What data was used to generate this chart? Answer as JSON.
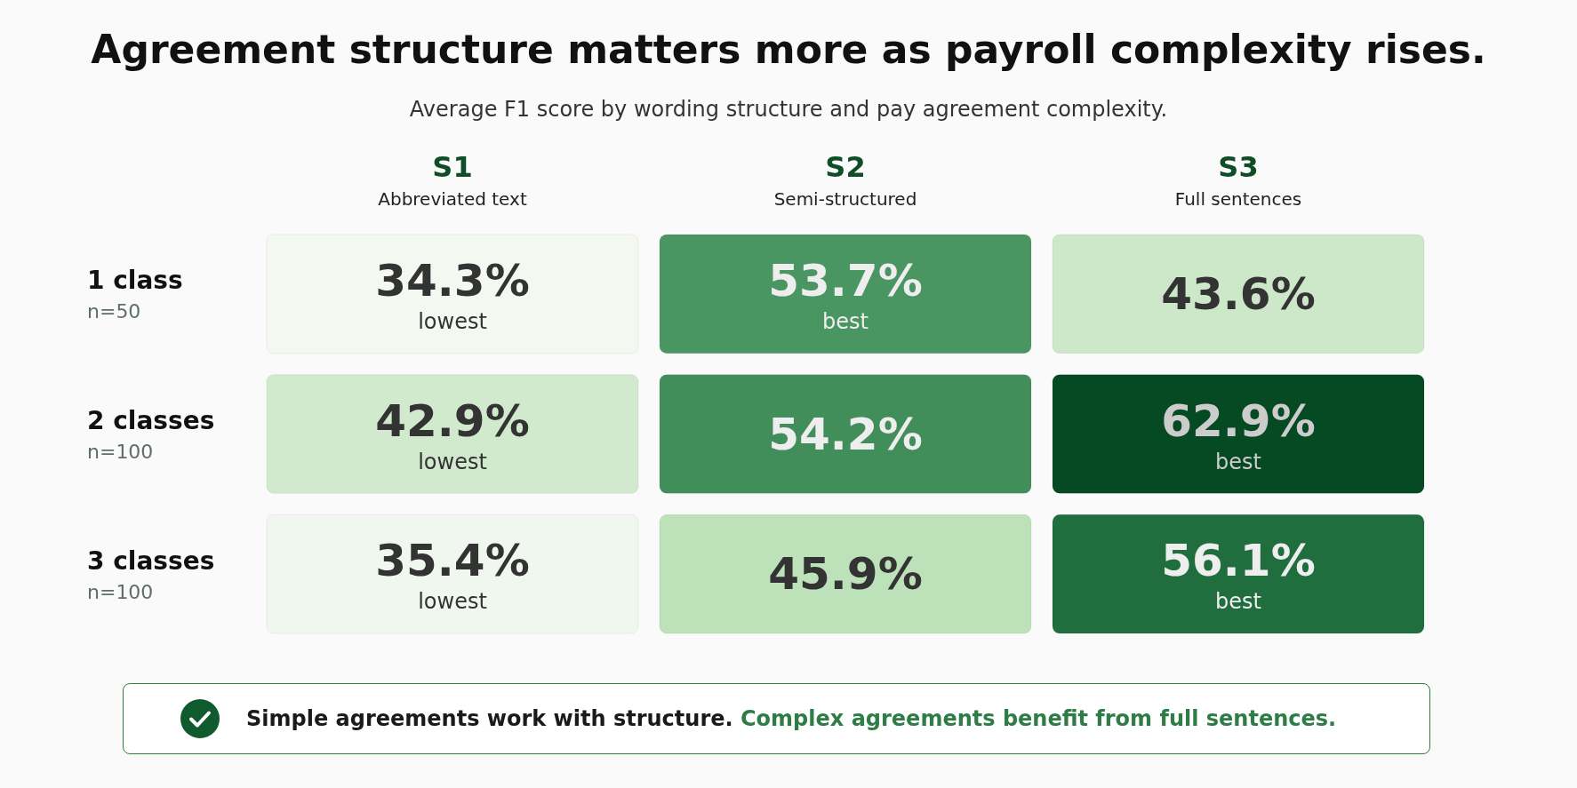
{
  "chart_data": {
    "type": "heatmap",
    "title": "Agreement structure matters more as payroll complexity rises.",
    "subtitle": "Average F1 score by wording structure and pay agreement complexity.",
    "categories": [
      "S1\nAbbreviated text",
      "S2\nSemi-structured",
      "S3\nFull sentences"
    ],
    "y_categories": [
      "1 class\nn=50",
      "2 classes\nn=100",
      "3 classes\nn=100"
    ],
    "cells": [
      [
        34.3,
        53.7,
        43.6
      ],
      [
        42.9,
        54.2,
        62.9
      ],
      [
        35.4,
        45.9,
        56.1
      ]
    ],
    "cell_labels": [
      [
        "34.3%\nlowest",
        "53.7%\nbest",
        "43.6%"
      ],
      [
        "42.9%\nlowest",
        "54.2%",
        "62.9%\nbest"
      ],
      [
        "35.4%\nlowest",
        "45.9%",
        "56.1%\nbest"
      ]
    ],
    "annotations": [
      "Simple agreements work with structure.",
      "Complex agreements benefit from full sentences."
    ]
  }
}
